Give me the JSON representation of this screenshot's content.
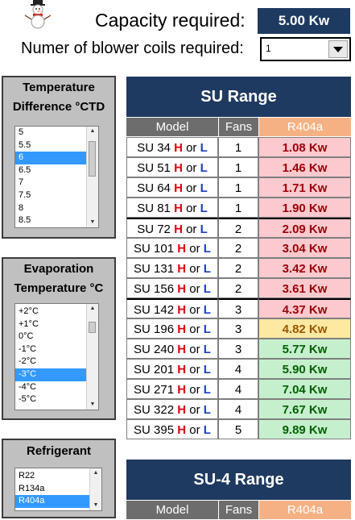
{
  "header": {
    "capacity_label": "Capacity required:",
    "capacity_value": "5.00 Kw",
    "coils_label": "Numer of blower coils required:",
    "coils_value": "1"
  },
  "temp_diff": {
    "title_line1": "Temperature",
    "title_line2": "Difference °CTD",
    "items": [
      "5",
      "5.5",
      "6",
      "6.5",
      "7",
      "7.5",
      "8",
      "8.5"
    ],
    "selected_index": 2
  },
  "evap": {
    "title_line1": "Evaporation",
    "title_line2": "Temperature °C",
    "items": [
      "+2°C",
      "+1°C",
      "0°C",
      "-1°C",
      "-2°C",
      "-3°C",
      "-4°C",
      "-5°C"
    ],
    "selected_index": 5
  },
  "refrigerant": {
    "title": "Refrigerant",
    "items": [
      "R22",
      "R134a",
      "R404a"
    ],
    "selected_index": 2
  },
  "su_range": {
    "title": "SU Range",
    "col_model": "Model",
    "col_fans": "Fans",
    "col_refrigerant": "R404a",
    "h_label": "H",
    "or_label": "or",
    "l_label": "L",
    "rows": [
      {
        "model": "SU 34",
        "fans": "1",
        "kw": "1.08 Kw",
        "status": "red"
      },
      {
        "model": "SU 51",
        "fans": "1",
        "kw": "1.46 Kw",
        "status": "red"
      },
      {
        "model": "SU 64",
        "fans": "1",
        "kw": "1.71 Kw",
        "status": "red"
      },
      {
        "model": "SU 81",
        "fans": "1",
        "kw": "1.90 Kw",
        "status": "red"
      },
      {
        "model": "SU 72",
        "fans": "2",
        "kw": "2.09 Kw",
        "status": "red"
      },
      {
        "model": "SU 101",
        "fans": "2",
        "kw": "3.04 Kw",
        "status": "red"
      },
      {
        "model": "SU 131",
        "fans": "2",
        "kw": "3.42 Kw",
        "status": "red"
      },
      {
        "model": "SU 156",
        "fans": "2",
        "kw": "3.61 Kw",
        "status": "red"
      },
      {
        "model": "SU 142",
        "fans": "3",
        "kw": "4.37 Kw",
        "status": "red"
      },
      {
        "model": "SU 196",
        "fans": "3",
        "kw": "4.82 Kw",
        "status": "yellow"
      },
      {
        "model": "SU 240",
        "fans": "3",
        "kw": "5.77 Kw",
        "status": "green"
      },
      {
        "model": "SU 201",
        "fans": "4",
        "kw": "5.90 Kw",
        "status": "green"
      },
      {
        "model": "SU 271",
        "fans": "4",
        "kw": "7.04 Kw",
        "status": "green"
      },
      {
        "model": "SU 322",
        "fans": "4",
        "kw": "7.67 Kw",
        "status": "green"
      },
      {
        "model": "SU 395",
        "fans": "5",
        "kw": "9.89 Kw",
        "status": "green"
      }
    ]
  },
  "su4_range": {
    "title": "SU-4 Range",
    "col_model": "Model",
    "col_fans": "Fans",
    "col_refrigerant": "R404a"
  },
  "colors": {
    "navy": "#1f3a60",
    "header_gray": "#6d6d6d",
    "refrigerant_header": "#f5b183",
    "red_fill": "#fbc9ce",
    "yellow_fill": "#fde9a2",
    "green_fill": "#c6efce"
  },
  "icons": [
    "snowman-logo",
    "dropdown-arrow-icon",
    "scroll-up-icon",
    "scroll-down-icon"
  ]
}
